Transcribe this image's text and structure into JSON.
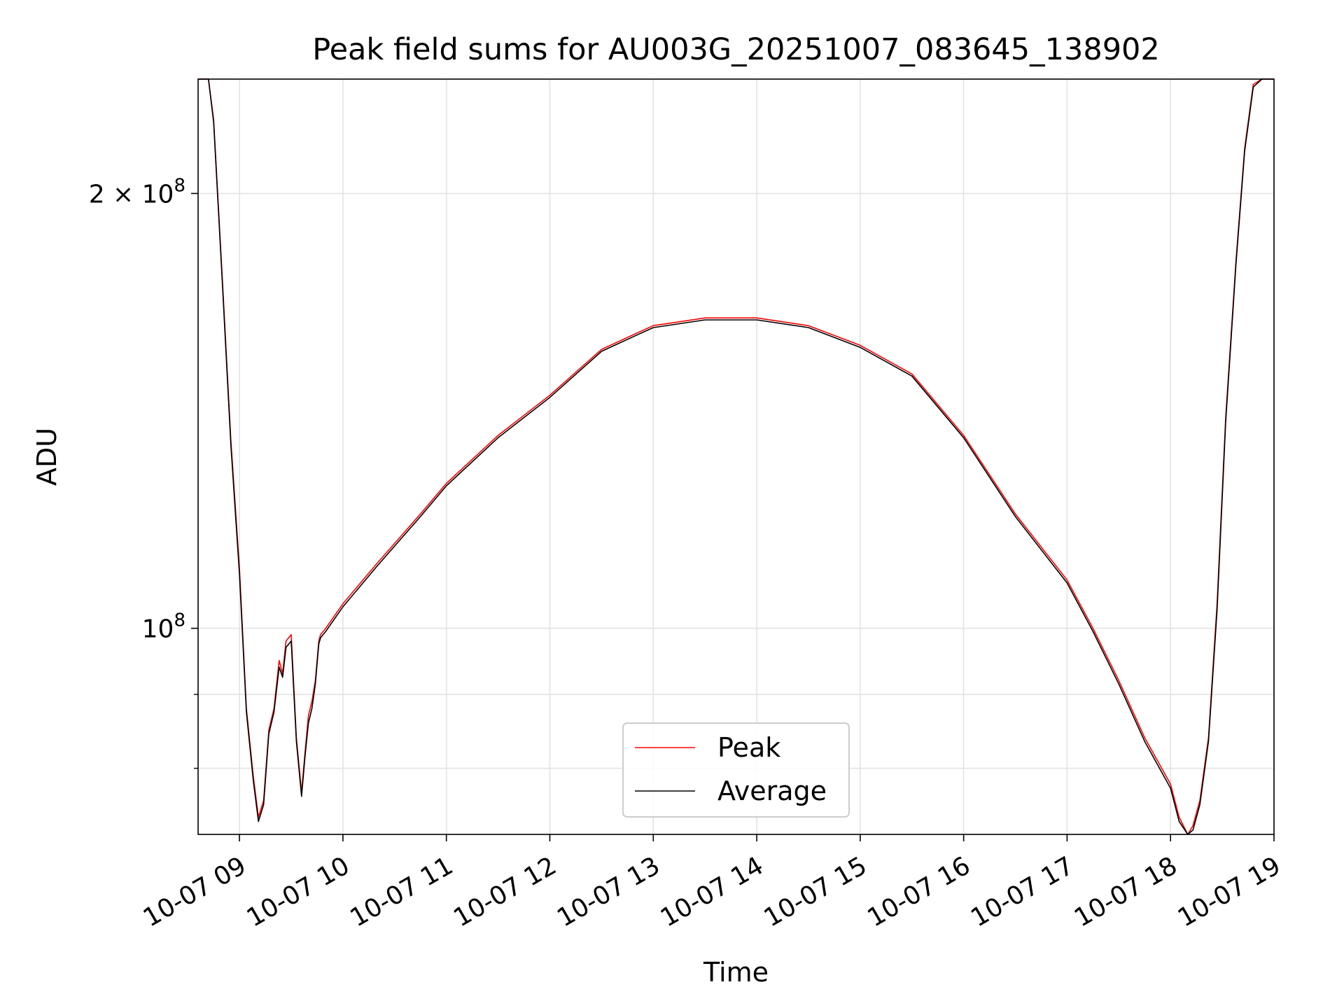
{
  "chart_data": {
    "type": "line",
    "title": "Peak field sums for AU003G_20251007_083645_138902",
    "xlabel": "Time",
    "ylabel": "ADU",
    "x_axis_type": "datetime",
    "x_range": [
      "2025-10-07 08:36",
      "2025-10-07 19:00"
    ],
    "y_scale": "log",
    "ylim": [
      72000000,
      240000000
    ],
    "grid": true,
    "legend_position": "lower center",
    "x_ticks": [
      {
        "t": "2025-10-07 09:00",
        "label": "10-07 09"
      },
      {
        "t": "2025-10-07 10:00",
        "label": "10-07 10"
      },
      {
        "t": "2025-10-07 11:00",
        "label": "10-07 11"
      },
      {
        "t": "2025-10-07 12:00",
        "label": "10-07 12"
      },
      {
        "t": "2025-10-07 13:00",
        "label": "10-07 13"
      },
      {
        "t": "2025-10-07 14:00",
        "label": "10-07 14"
      },
      {
        "t": "2025-10-07 15:00",
        "label": "10-07 15"
      },
      {
        "t": "2025-10-07 16:00",
        "label": "10-07 16"
      },
      {
        "t": "2025-10-07 17:00",
        "label": "10-07 17"
      },
      {
        "t": "2025-10-07 18:00",
        "label": "10-07 18"
      },
      {
        "t": "2025-10-07 19:00",
        "label": "10-07 19"
      }
    ],
    "y_major_ticks": [
      {
        "value": 100000000,
        "base": "10",
        "exp": "8"
      },
      {
        "value": 200000000,
        "base": "2 × 10",
        "exp": "8"
      }
    ],
    "y_minor_ticks": [
      80000000,
      90000000,
      300000000
    ],
    "series": [
      {
        "name": "Peak",
        "color": "#ff0000",
        "x": [
          "2025-10-07 08:36",
          "2025-10-07 08:42",
          "2025-10-07 08:45",
          "2025-10-07 08:50",
          "2025-10-07 08:55",
          "2025-10-07 09:00",
          "2025-10-07 09:04",
          "2025-10-07 09:08",
          "2025-10-07 09:11",
          "2025-10-07 09:14",
          "2025-10-07 09:17",
          "2025-10-07 09:20",
          "2025-10-07 09:23",
          "2025-10-07 09:25",
          "2025-10-07 09:27",
          "2025-10-07 09:30",
          "2025-10-07 09:33",
          "2025-10-07 09:36",
          "2025-10-07 09:38",
          "2025-10-07 09:40",
          "2025-10-07 09:42",
          "2025-10-07 09:44",
          "2025-10-07 09:46",
          "2025-10-07 09:47",
          "2025-10-07 09:50",
          "2025-10-07 10:00",
          "2025-10-07 10:20",
          "2025-10-07 10:45",
          "2025-10-07 11:00",
          "2025-10-07 11:30",
          "2025-10-07 12:00",
          "2025-10-07 12:30",
          "2025-10-07 12:50",
          "2025-10-07 13:00",
          "2025-10-07 13:30",
          "2025-10-07 14:00",
          "2025-10-07 14:30",
          "2025-10-07 15:00",
          "2025-10-07 15:30",
          "2025-10-07 16:00",
          "2025-10-07 16:30",
          "2025-10-07 17:00",
          "2025-10-07 17:15",
          "2025-10-07 17:30",
          "2025-10-07 17:45",
          "2025-10-07 18:00",
          "2025-10-07 18:05",
          "2025-10-07 18:10",
          "2025-10-07 18:13",
          "2025-10-07 18:17",
          "2025-10-07 18:22",
          "2025-10-07 18:27",
          "2025-10-07 18:32",
          "2025-10-07 18:38",
          "2025-10-07 18:43",
          "2025-10-07 18:48",
          "2025-10-07 18:53",
          "2025-10-07 19:00"
        ],
        "y": [
          240000000,
          240000000,
          225000000,
          175000000,
          135000000,
          110000000,
          88000000,
          79000000,
          74000000,
          76000000,
          85000000,
          88000000,
          95000000,
          93000000,
          98000000,
          99000000,
          84000000,
          77000000,
          82000000,
          87000000,
          89000000,
          92000000,
          98000000,
          99000000,
          100000000,
          104000000,
          111000000,
          120000000,
          126000000,
          136000000,
          145000000,
          156000000,
          160000000,
          162000000,
          164000000,
          164000000,
          162000000,
          157000000,
          150000000,
          136000000,
          120000000,
          108000000,
          100000000,
          92000000,
          84000000,
          78000000,
          74000000,
          72000000,
          73000000,
          76000000,
          84000000,
          104000000,
          140000000,
          180000000,
          215000000,
          238000000,
          240000000,
          240000000
        ]
      },
      {
        "name": "Average",
        "color": "#000000",
        "x": [
          "2025-10-07 08:36",
          "2025-10-07 08:42",
          "2025-10-07 08:45",
          "2025-10-07 08:50",
          "2025-10-07 08:55",
          "2025-10-07 09:00",
          "2025-10-07 09:04",
          "2025-10-07 09:08",
          "2025-10-07 09:11",
          "2025-10-07 09:14",
          "2025-10-07 09:17",
          "2025-10-07 09:20",
          "2025-10-07 09:23",
          "2025-10-07 09:25",
          "2025-10-07 09:27",
          "2025-10-07 09:30",
          "2025-10-07 09:33",
          "2025-10-07 09:36",
          "2025-10-07 09:38",
          "2025-10-07 09:40",
          "2025-10-07 09:42",
          "2025-10-07 09:44",
          "2025-10-07 09:46",
          "2025-10-07 09:47",
          "2025-10-07 09:50",
          "2025-10-07 10:00",
          "2025-10-07 10:20",
          "2025-10-07 10:45",
          "2025-10-07 11:00",
          "2025-10-07 11:30",
          "2025-10-07 12:00",
          "2025-10-07 12:30",
          "2025-10-07 12:50",
          "2025-10-07 13:00",
          "2025-10-07 13:30",
          "2025-10-07 14:00",
          "2025-10-07 14:30",
          "2025-10-07 15:00",
          "2025-10-07 15:30",
          "2025-10-07 16:00",
          "2025-10-07 16:30",
          "2025-10-07 17:00",
          "2025-10-07 17:15",
          "2025-10-07 17:30",
          "2025-10-07 17:45",
          "2025-10-07 18:00",
          "2025-10-07 18:05",
          "2025-10-07 18:10",
          "2025-10-07 18:13",
          "2025-10-07 18:17",
          "2025-10-07 18:22",
          "2025-10-07 18:27",
          "2025-10-07 18:32",
          "2025-10-07 18:38",
          "2025-10-07 18:43",
          "2025-10-07 18:48",
          "2025-10-07 18:53",
          "2025-10-07 19:00"
        ],
        "y": [
          240000000,
          240000000,
          224000000,
          174000000,
          134000000,
          109000000,
          87500000,
          78500000,
          73500000,
          75500000,
          84500000,
          87500000,
          94000000,
          92500000,
          97000000,
          98000000,
          83500000,
          76500000,
          81500000,
          86000000,
          88000000,
          91500000,
          97500000,
          98500000,
          99500000,
          103500000,
          110500000,
          119500000,
          125500000,
          135500000,
          144500000,
          155500000,
          159500000,
          161500000,
          163500000,
          163500000,
          161500000,
          156500000,
          149500000,
          135500000,
          119500000,
          107500000,
          99500000,
          91500000,
          83500000,
          77500000,
          73500000,
          72000000,
          72500000,
          75500000,
          83500000,
          103000000,
          139000000,
          179000000,
          214000000,
          237000000,
          240000000,
          240000000
        ]
      }
    ]
  }
}
